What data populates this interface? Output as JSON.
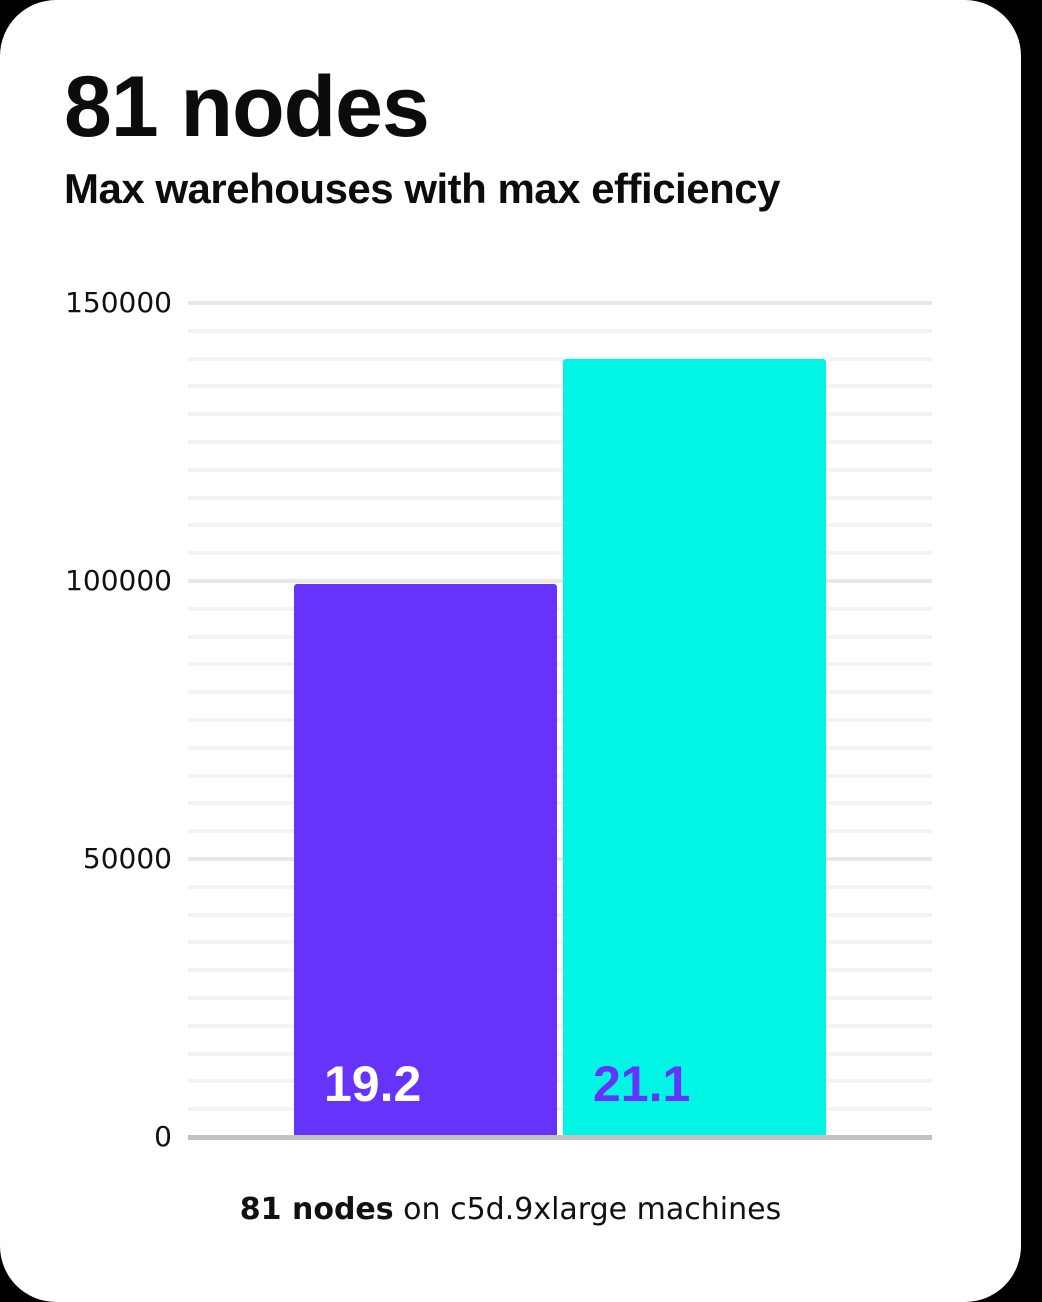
{
  "page": {
    "background_color": "#000000",
    "card_background_color": "#ffffff"
  },
  "header": {
    "title": "81 nodes",
    "subtitle": "Max warehouses with max efficiency"
  },
  "caption": {
    "bold": "81 nodes",
    "rest": " on c5d.9xlarge machines"
  },
  "chart_data": {
    "type": "bar",
    "title": "81 nodes",
    "subtitle": "Max warehouses with max efficiency",
    "categories": [
      "19.2",
      "21.1"
    ],
    "values": [
      99500,
      140000
    ],
    "xlabel": "",
    "ylabel": "",
    "ylim": [
      0,
      150000
    ],
    "y_ticks": [
      0,
      50000,
      100000,
      150000
    ],
    "y_tick_labels": [
      "0",
      "50000",
      "100000",
      "150000"
    ],
    "minor_grid_step": 5000,
    "grid": true,
    "legend_position": "none",
    "annotation": "81 nodes on c5d.9xlarge machines",
    "bars": [
      {
        "label": "19.2",
        "value": 99500,
        "color": "#6633fa",
        "label_color": "#ffffff"
      },
      {
        "label": "21.1",
        "value": 140000,
        "color": "#00f5e5",
        "label_color": "#6633fa"
      }
    ]
  }
}
